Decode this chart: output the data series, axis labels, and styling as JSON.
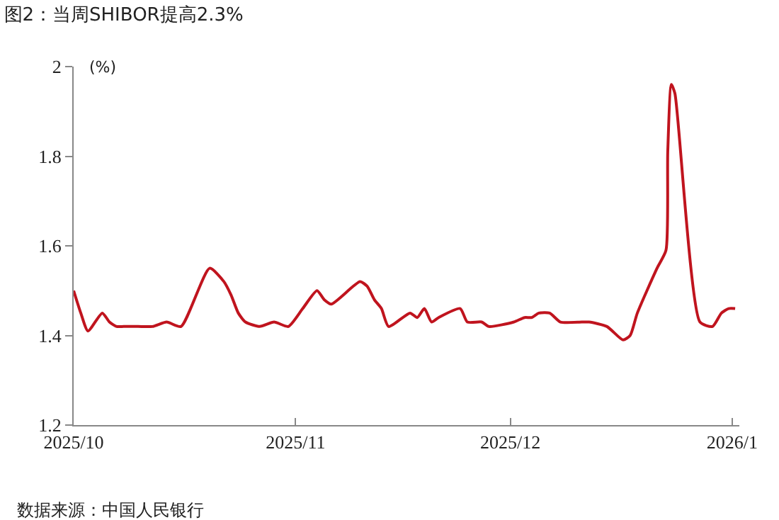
{
  "chart_data": {
    "type": "line",
    "title": "图2：当周SHIBOR提高2.3%",
    "ylabel": "(%)",
    "annotations": [
      "数据来源：中国人民银行"
    ],
    "x": [
      "2025-10-01",
      "2025-10-02",
      "2025-10-03",
      "2025-10-05",
      "2025-10-06",
      "2025-10-07",
      "2025-10-08",
      "2025-10-10",
      "2025-10-12",
      "2025-10-14",
      "2025-10-16",
      "2025-10-20",
      "2025-10-22",
      "2025-10-23",
      "2025-10-24",
      "2025-10-25",
      "2025-10-27",
      "2025-10-29",
      "2025-10-31",
      "2025-11-02",
      "2025-11-04",
      "2025-11-05",
      "2025-11-06",
      "2025-11-10",
      "2025-11-11",
      "2025-11-12",
      "2025-11-13",
      "2025-11-14",
      "2025-11-17",
      "2025-11-18",
      "2025-11-19",
      "2025-11-20",
      "2025-11-21",
      "2025-11-24",
      "2025-11-25",
      "2025-11-27",
      "2025-11-28",
      "2025-12-01T12:00",
      "2025-12-03",
      "2025-12-04",
      "2025-12-05",
      "2025-12-06T12:00",
      "2025-12-08",
      "2025-12-11",
      "2025-12-12",
      "2025-12-14T12:00",
      "2025-12-16T18:00",
      "2025-12-17T18:00",
      "2025-12-18T18:00",
      "2025-12-21T12:00",
      "2025-12-22T18:00",
      "2025-12-23T00:00",
      "2025-12-23T12:00",
      "2025-12-24T00:00",
      "2025-12-27T12:00",
      "2025-12-29T06:00",
      "2025-12-30T12:00",
      "2025-12-31T12:00",
      "2026-01-01T10:00"
    ],
    "series": [
      {
        "color": "#c0141e",
        "values": [
          1.5,
          1.45,
          1.41,
          1.45,
          1.43,
          1.42,
          1.42,
          1.42,
          1.42,
          1.43,
          1.42,
          1.55,
          1.52,
          1.49,
          1.45,
          1.43,
          1.42,
          1.43,
          1.42,
          1.46,
          1.5,
          1.48,
          1.47,
          1.52,
          1.51,
          1.48,
          1.46,
          1.42,
          1.45,
          1.44,
          1.46,
          1.43,
          1.44,
          1.46,
          1.43,
          1.43,
          1.42,
          1.43,
          1.44,
          1.44,
          1.45,
          1.45,
          1.43,
          1.43,
          1.43,
          1.42,
          1.39,
          1.4,
          1.45,
          1.55,
          1.59,
          1.81,
          1.96,
          1.94,
          1.43,
          1.42,
          1.45,
          1.46,
          1.46
        ]
      }
    ],
    "xlim": [
      "2025-10-01",
      "2026-01-02"
    ],
    "xticks": [
      {
        "value": "2025-10-01",
        "label": "2025/10"
      },
      {
        "value": "2025-11-01",
        "label": "2025/11"
      },
      {
        "value": "2025-12-01",
        "label": "2025/12"
      },
      {
        "value": "2026-01-01",
        "label": "2026/1"
      }
    ],
    "ylim": [
      1.2,
      2
    ],
    "yticks": [
      1.2,
      1.4,
      1.6,
      1.8,
      2
    ],
    "line_style": "solid",
    "marker": "none"
  }
}
